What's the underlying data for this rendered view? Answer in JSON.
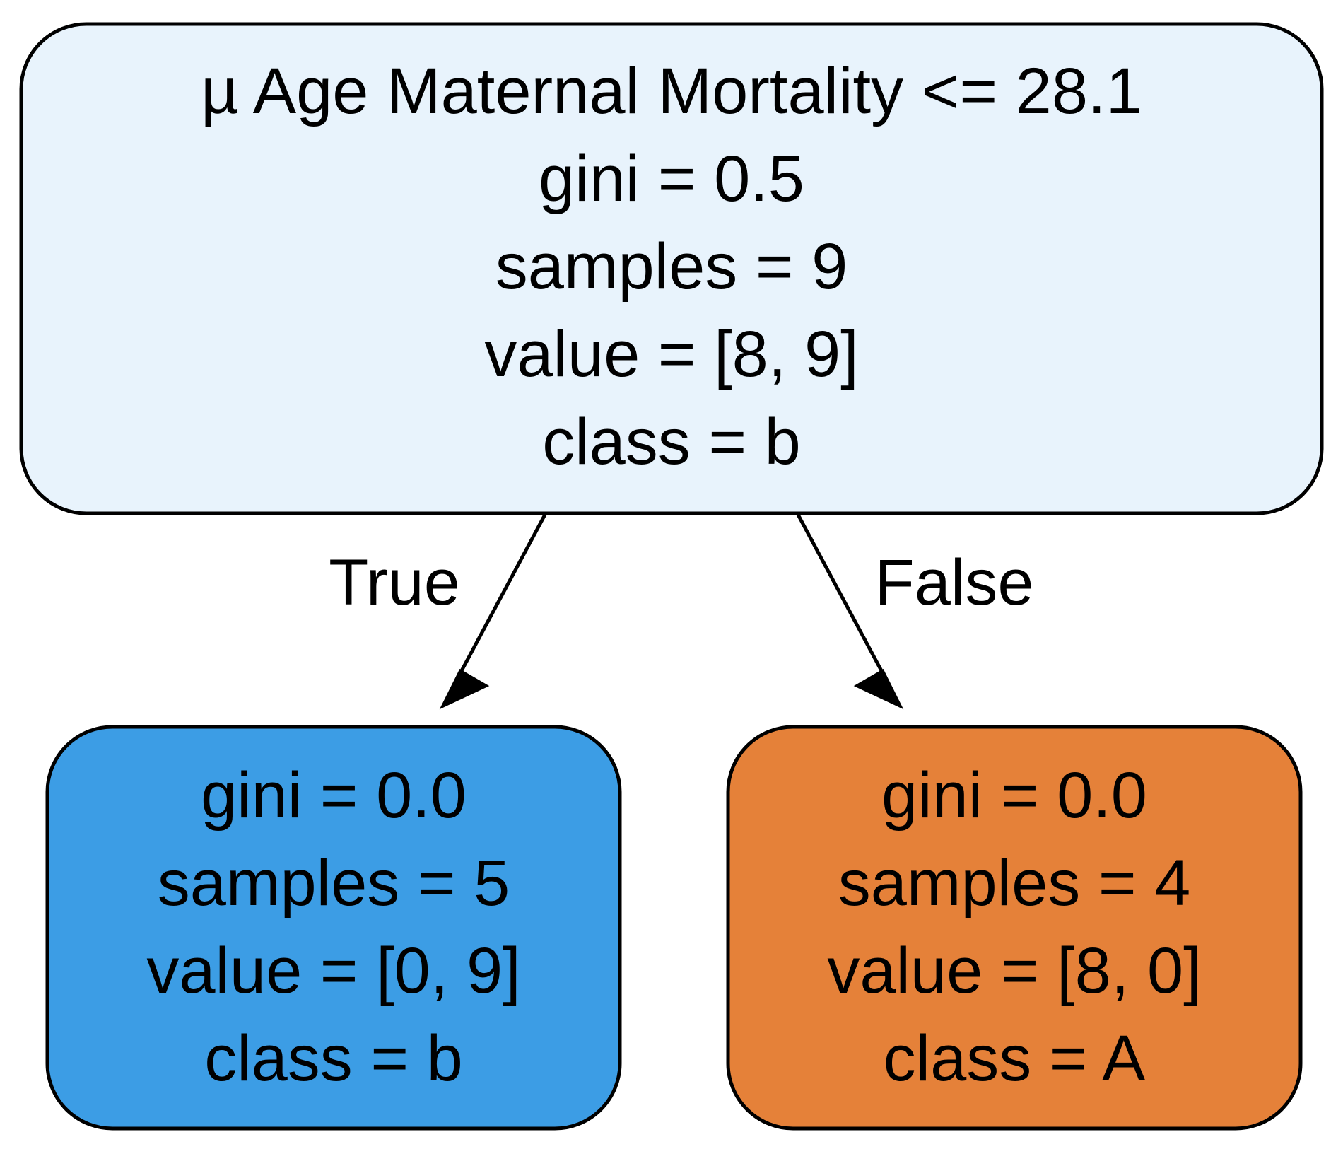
{
  "nodes": [
    {
      "id": "root",
      "fill": "#e8f3fc",
      "lines": [
        "µ Age Maternal Mortality <= 28.1",
        "gini = 0.5",
        "samples = 9",
        "value = [8, 9]",
        "class = b"
      ]
    },
    {
      "id": "left",
      "fill": "#3c9de5",
      "lines": [
        "gini = 0.0",
        "samples = 5",
        "value = [0, 9]",
        "class = b"
      ]
    },
    {
      "id": "right",
      "fill": "#e58139",
      "lines": [
        "gini = 0.0",
        "samples = 4",
        "value = [8, 0]",
        "class = A"
      ]
    }
  ],
  "edges": [
    {
      "from": "root",
      "to": "left",
      "label": "True"
    },
    {
      "from": "root",
      "to": "right",
      "label": "False"
    }
  ],
  "colors": {
    "stroke": "#000000",
    "text": "#000000",
    "background": "#ffffff"
  }
}
